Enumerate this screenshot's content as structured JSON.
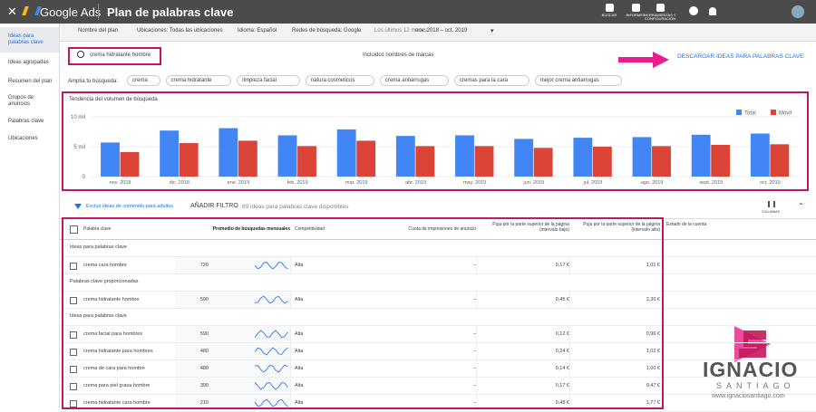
{
  "header": {
    "app": "Google Ads",
    "page": "Plan de palabras clave",
    "icons": [
      "BUSCAR",
      "INFORMES",
      "HERRAMIENTAS Y CONFIGURACIÓN"
    ]
  },
  "filters": [
    "Nombre del plan",
    "Ubicaciones: Todas las ubicaciones",
    "Idioma: Español",
    "Redes de búsqueda: Google",
    "Los últimos 12 meses",
    "nov. 2018 – oct. 2019"
  ],
  "sidebar": [
    "Ideas para palabras clave",
    "Ideas agrupadas",
    "Resumen del plan",
    "Grupos de anuncios",
    "Palabras clave",
    "Ubicaciones"
  ],
  "search": {
    "query": "crema hidratante hombre",
    "brand_note": "Incluidos nombres de marcas",
    "download": "DESCARGAR IDEAS PARA PALABRAS CLAVE"
  },
  "broaden": {
    "label": "Amplía tu búsqueda:",
    "chips": [
      "crema",
      "crema hidratante",
      "limpieza facial",
      "natura cosmeticos",
      "crema antiarrugas",
      "cremas para la cara",
      "mejor crema antiarrugas"
    ]
  },
  "chart_data": {
    "type": "bar",
    "title": "Tendencia del volumen de búsqueda",
    "categories": [
      "nov. 2018",
      "dic. 2018",
      "ene. 2019",
      "feb. 2019",
      "mar. 2019",
      "abr. 2019",
      "may. 2019",
      "jun. 2019",
      "jul. 2019",
      "ago. 2019",
      "sept. 2019",
      "oct. 2019"
    ],
    "series": [
      {
        "name": "Total",
        "color": "#4285f4",
        "values": [
          5700,
          7700,
          8100,
          6900,
          7900,
          6800,
          6900,
          6300,
          6500,
          6600,
          7000,
          7200
        ]
      },
      {
        "name": "Móvil",
        "color": "#db4437",
        "values": [
          4100,
          5600,
          6000,
          5100,
          6000,
          5100,
          5100,
          4800,
          5000,
          5100,
          5300,
          5400
        ]
      }
    ],
    "ylim": [
      0,
      10000
    ],
    "yticks": [
      0,
      {
        "value": 5000,
        "label": "5 mil"
      },
      {
        "value": 10000,
        "label": "10 mil"
      }
    ],
    "grid": true,
    "legend": "top-right"
  },
  "filter_bar": {
    "adult": "Excluir ideas de contenido para adultos",
    "add": "AÑADIR FILTRO",
    "count": "89 ideas para palabras clave disponibles",
    "columns": "COLUMNAS"
  },
  "table": {
    "columns": [
      "Palabra clave",
      "Promedio de búsquedas mensuales",
      "Competitividad",
      "Cuota de impresiones de anuncio",
      "Puja por la parte superior de la página (intervalo bajo)",
      "Puja por la parte superior de la página (intervalo alto)",
      "Estado de la cuenta"
    ],
    "groups": [
      {
        "title": "Ideas para palabras clave",
        "rows": [
          [
            "crema cara hombre",
            "720",
            "Alta",
            "–",
            "0,17 €",
            "1,01 €"
          ]
        ]
      },
      {
        "title": "Palabras clave proporcionadas",
        "rows": [
          [
            "crema hidratante hombre",
            "590",
            "Alta",
            "–",
            "0,45 €",
            "2,30 €"
          ]
        ]
      },
      {
        "title": "Ideas para palabras clave",
        "rows": [
          [
            "crema facial para hombres",
            "590",
            "Alta",
            "–",
            "0,12 €",
            "0,96 €"
          ],
          [
            "crema hidratante para hombres",
            "480",
            "Alta",
            "–",
            "0,24 €",
            "1,02 €"
          ],
          [
            "crema de cara para hombre",
            "480",
            "Alta",
            "–",
            "0,14 €",
            "1,00 €"
          ],
          [
            "crema para piel grasa hombre",
            "390",
            "Alta",
            "–",
            "0,17 €",
            "0,47 €"
          ],
          [
            "crema hidratante cara hombre",
            "210",
            "Alta",
            "–",
            "0,48 €",
            "1,77 €"
          ]
        ]
      }
    ]
  },
  "watermark": {
    "name": "IGNACIO",
    "sub": "SANTIAGO",
    "url": "www.ignaciosantiago.com"
  }
}
